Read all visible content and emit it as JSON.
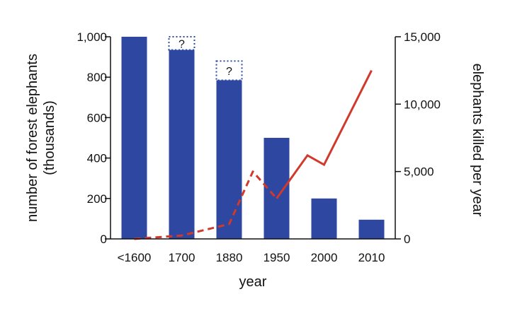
{
  "chart_data": {
    "type": "bar+line",
    "categories": [
      "<1600",
      "1700",
      "1880",
      "1950",
      "2000",
      "2010"
    ],
    "xlabel": "year",
    "bars": {
      "axis": "left",
      "ylabel_line1": "number of forest elephants",
      "ylabel_line2": "(thousands)",
      "ylim": [
        0,
        1000
      ],
      "yticks": [
        0,
        200,
        400,
        600,
        800,
        1000
      ],
      "ytick_labels": [
        "0",
        "200",
        "400",
        "600",
        "800",
        "1,000"
      ],
      "values": [
        1000,
        935,
        785,
        500,
        200,
        95
      ],
      "uncertain_max": [
        null,
        1000,
        880,
        null,
        null,
        null
      ],
      "uncertain_label": "?",
      "color": "#2e47a0",
      "uncertain_color": "#2e47a0"
    },
    "line": {
      "axis": "right",
      "ylabel": "elephants killed per year",
      "ylim": [
        0,
        15000
      ],
      "yticks": [
        0,
        5000,
        10000,
        15000
      ],
      "ytick_labels": [
        "0",
        "5,000",
        "10,000",
        "15,000"
      ],
      "color": "#d0392b",
      "dashed_points": [
        {
          "x": 0,
          "y": 0
        },
        {
          "x": 1,
          "y": 250
        },
        {
          "x": 2,
          "y": 1100
        },
        {
          "x": 2.5,
          "y": 5000
        },
        {
          "x": 3,
          "y": 3000
        }
      ],
      "solid_points": [
        {
          "x": 3,
          "y": 3000
        },
        {
          "x": 3.65,
          "y": 6200
        },
        {
          "x": 4,
          "y": 5500
        },
        {
          "x": 5,
          "y": 12500
        }
      ]
    }
  }
}
